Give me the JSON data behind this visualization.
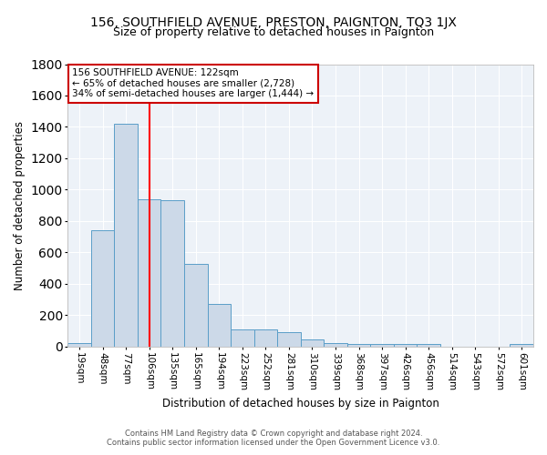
{
  "title": "156, SOUTHFIELD AVENUE, PRESTON, PAIGNTON, TQ3 1JX",
  "subtitle": "Size of property relative to detached houses in Paignton",
  "xlabel": "Distribution of detached houses by size in Paignton",
  "ylabel": "Number of detached properties",
  "categories": [
    "19sqm",
    "48sqm",
    "77sqm",
    "106sqm",
    "135sqm",
    "165sqm",
    "194sqm",
    "223sqm",
    "252sqm",
    "281sqm",
    "310sqm",
    "339sqm",
    "368sqm",
    "397sqm",
    "426sqm",
    "456sqm",
    "514sqm",
    "543sqm",
    "572sqm",
    "601sqm"
  ],
  "values": [
    25,
    740,
    1420,
    940,
    935,
    530,
    270,
    110,
    110,
    95,
    45,
    25,
    20,
    20,
    15,
    20,
    0,
    0,
    0,
    20
  ],
  "bar_color": "#ccd9e8",
  "bar_edge_color": "#5a9ec8",
  "red_line_x": 3.0,
  "annotation_text": "156 SOUTHFIELD AVENUE: 122sqm\n← 65% of detached houses are smaller (2,728)\n34% of semi-detached houses are larger (1,444) →",
  "annotation_box_color": "#ffffff",
  "annotation_box_edge_color": "#cc0000",
  "footer_line1": "Contains HM Land Registry data © Crown copyright and database right 2024.",
  "footer_line2": "Contains public sector information licensed under the Open Government Licence v3.0.",
  "ylim": [
    0,
    1800
  ],
  "bg_color": "#ffffff",
  "plot_bg_color": "#edf2f8",
  "title_fontsize": 10,
  "subtitle_fontsize": 9,
  "tick_fontsize": 7.5,
  "ylabel_fontsize": 8.5,
  "xlabel_fontsize": 8.5,
  "footer_fontsize": 6.0
}
